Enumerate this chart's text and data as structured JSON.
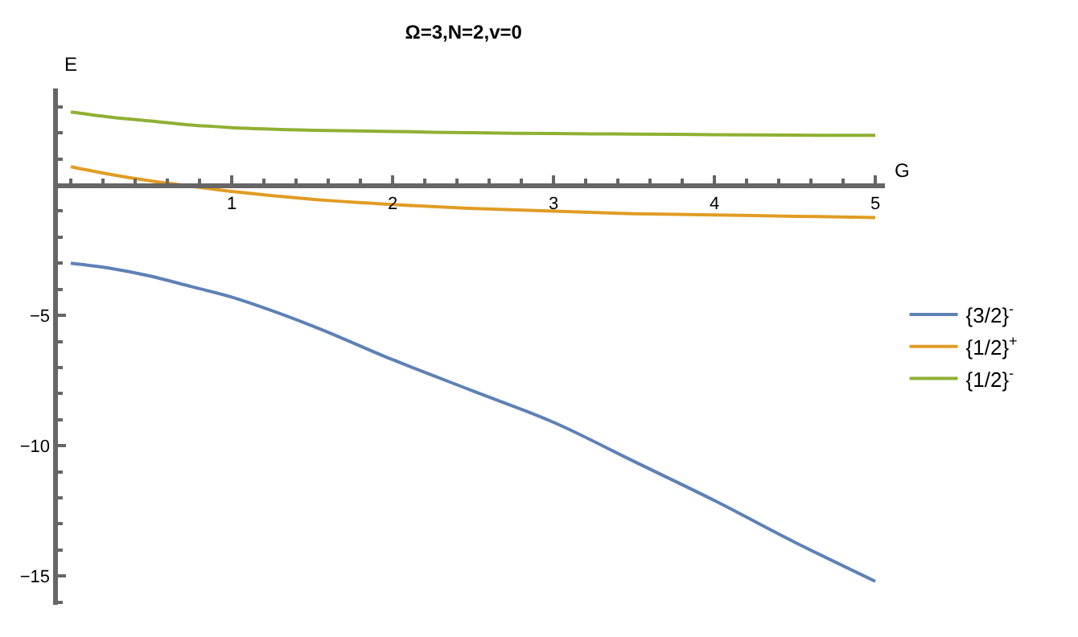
{
  "chart_data": {
    "type": "line",
    "title": "Ω=3,N=2,v=0",
    "xlabel": "G",
    "ylabel": "E",
    "x": [
      0,
      0.25,
      0.5,
      0.75,
      1,
      1.5,
      2,
      2.5,
      3,
      3.5,
      4,
      4.5,
      5
    ],
    "series": [
      {
        "name": "{3/2}$^{-}$",
        "color": "#5e81b5",
        "values": [
          -3.0,
          -3.2,
          -3.5,
          -3.9,
          -4.3,
          -5.4,
          -6.7,
          -7.9,
          -9.1,
          -10.6,
          -12.1,
          -13.7,
          -15.2
        ]
      },
      {
        "name": "{1/2}$^{+}$",
        "color": "#e19c24",
        "values": [
          0.7,
          0.4,
          0.15,
          -0.05,
          -0.25,
          -0.55,
          -0.75,
          -0.9,
          -1.0,
          -1.1,
          -1.15,
          -1.2,
          -1.25
        ]
      },
      {
        "name": "{1/2}$^{-}$",
        "color": "#8fb032",
        "values": [
          2.8,
          2.6,
          2.45,
          2.3,
          2.2,
          2.1,
          2.05,
          2.0,
          1.97,
          1.95,
          1.93,
          1.91,
          1.9
        ]
      }
    ],
    "xlim": [
      -0.08,
      5.06
    ],
    "ylim": [
      -16.1,
      3.7
    ],
    "xticks": [
      1,
      2,
      3,
      4,
      5
    ],
    "yticks": [
      -15,
      -10,
      -5
    ],
    "legend": "right",
    "marker": "none",
    "line_style": "solid"
  }
}
